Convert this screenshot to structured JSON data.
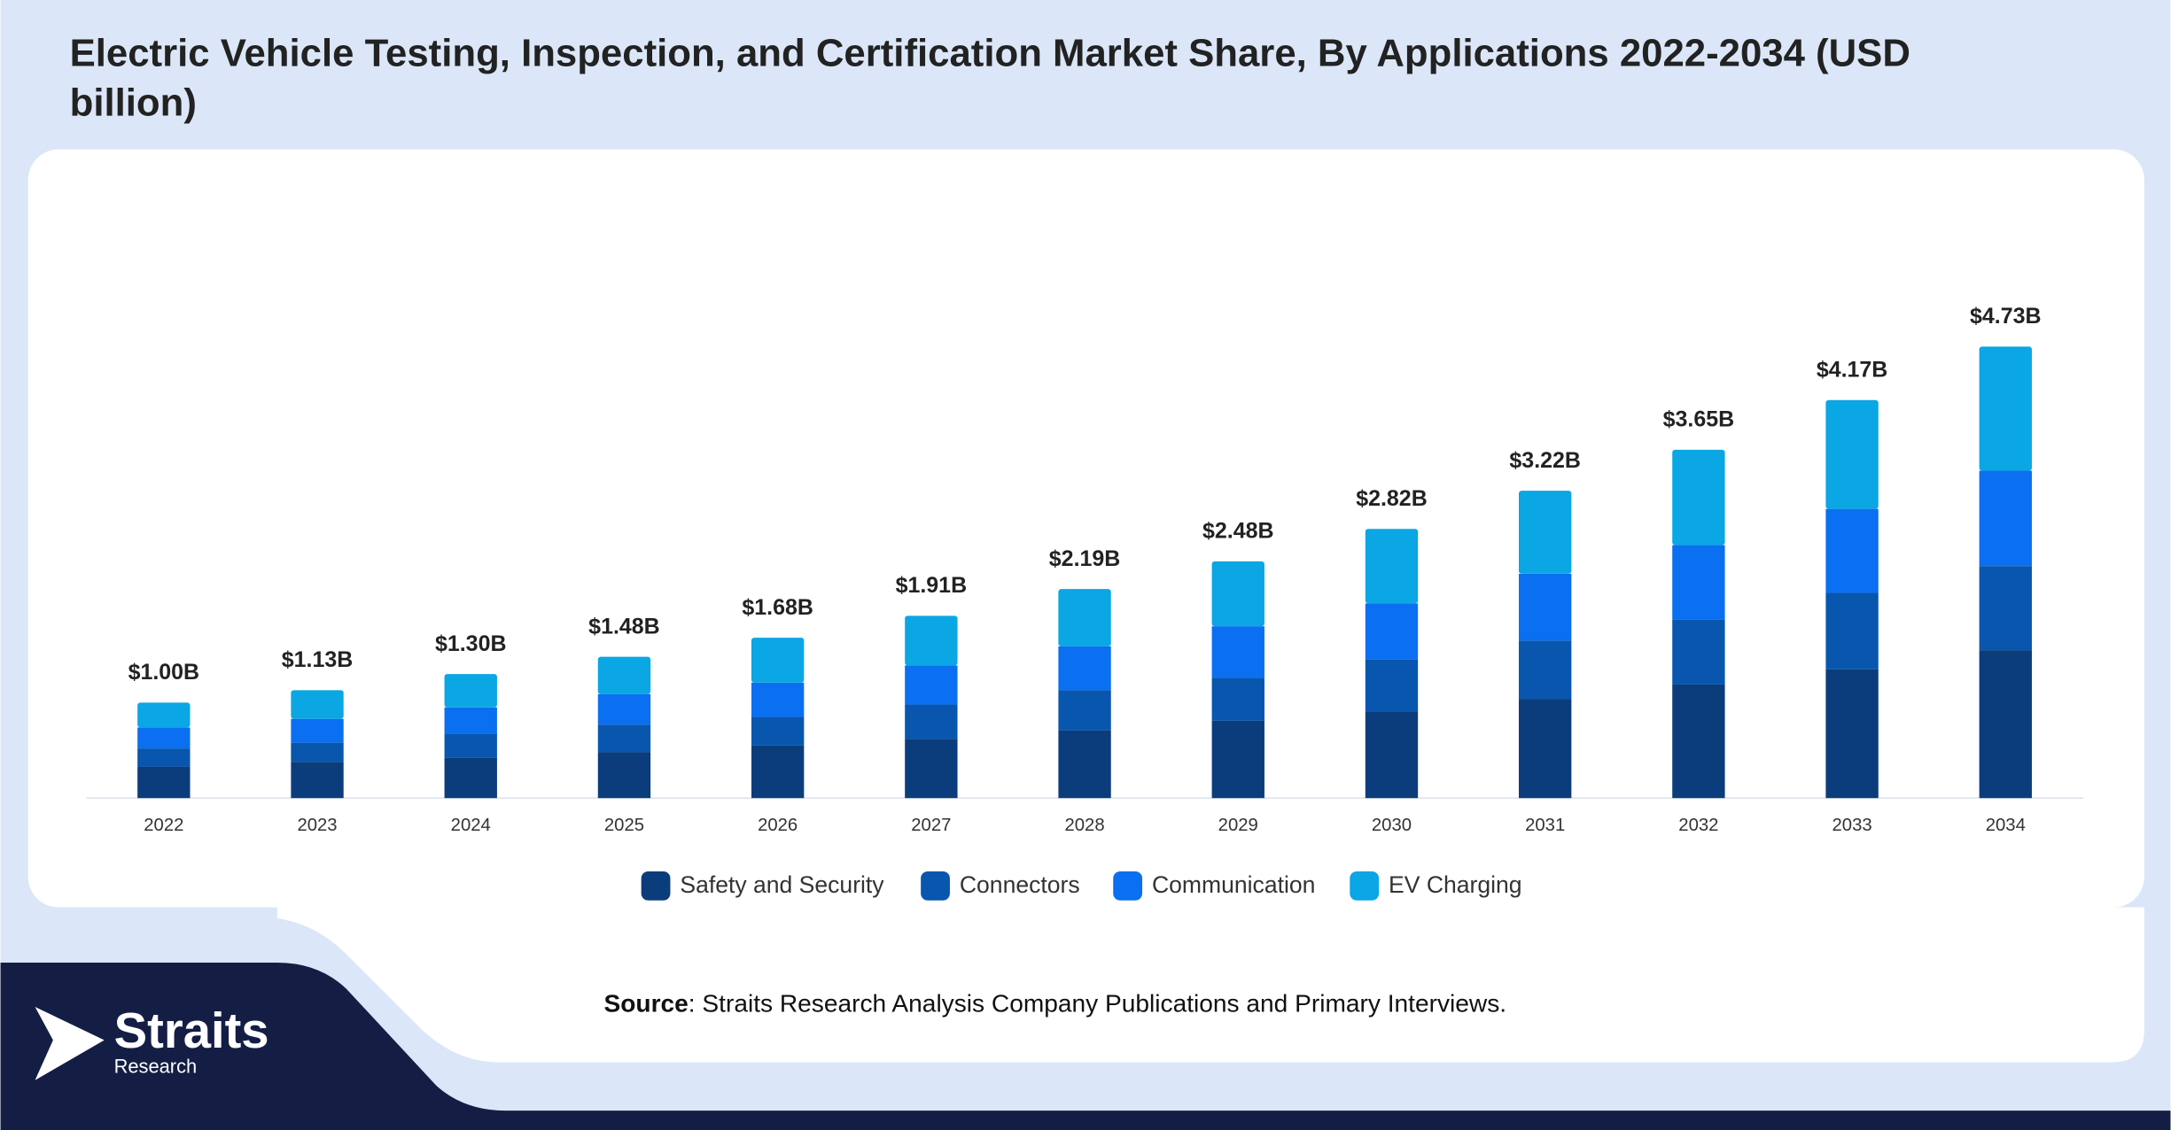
{
  "chart_data": {
    "type": "stacked-bar",
    "title": "Electric Vehicle Testing, Inspection, and Certification Market Share, By Applications 2022-2034 (USD billion)",
    "categories": [
      "2022",
      "2023",
      "2024",
      "2025",
      "2026",
      "2027",
      "2028",
      "2029",
      "2030",
      "2031",
      "2032",
      "2033",
      "2034"
    ],
    "series": [
      {
        "name": "Safety and Security",
        "color": "#0b3d7c",
        "values": [
          0.33,
          0.38,
          0.42,
          0.48,
          0.55,
          0.62,
          0.71,
          0.81,
          0.91,
          1.04,
          1.19,
          1.35,
          1.55
        ]
      },
      {
        "name": "Connectors",
        "color": "#0856ae",
        "values": [
          0.19,
          0.2,
          0.25,
          0.29,
          0.3,
          0.36,
          0.42,
          0.45,
          0.54,
          0.61,
          0.68,
          0.8,
          0.88
        ]
      },
      {
        "name": "Communication",
        "color": "#0a6ff0",
        "values": [
          0.22,
          0.25,
          0.28,
          0.32,
          0.36,
          0.41,
          0.46,
          0.54,
          0.59,
          0.7,
          0.78,
          0.88,
          1.0
        ]
      },
      {
        "name": "EV Charging",
        "color": "#0ba6e4",
        "values": [
          0.26,
          0.3,
          0.35,
          0.39,
          0.47,
          0.52,
          0.6,
          0.68,
          0.78,
          0.87,
          1.0,
          1.14,
          1.3
        ]
      }
    ],
    "totals": {
      "values": [
        1.0,
        1.13,
        1.3,
        1.48,
        1.68,
        1.91,
        2.19,
        2.48,
        2.82,
        3.22,
        3.65,
        4.17,
        4.73
      ],
      "value_labels": [
        "$1.00B",
        "$1.13B",
        "$1.30B",
        "$1.48B",
        "$1.68B",
        "$1.91B",
        "$2.19B",
        "$2.48B",
        "$2.82B",
        "$3.22B",
        "$3.65B",
        "$4.17B",
        "$4.73B"
      ]
    },
    "ylim": [
      0,
      6.5
    ]
  },
  "source": {
    "label": "Source",
    "text": ": Straits Research Analysis Company Publications and Primary Interviews."
  },
  "logo": {
    "name": "Straits",
    "sub": "Research"
  }
}
